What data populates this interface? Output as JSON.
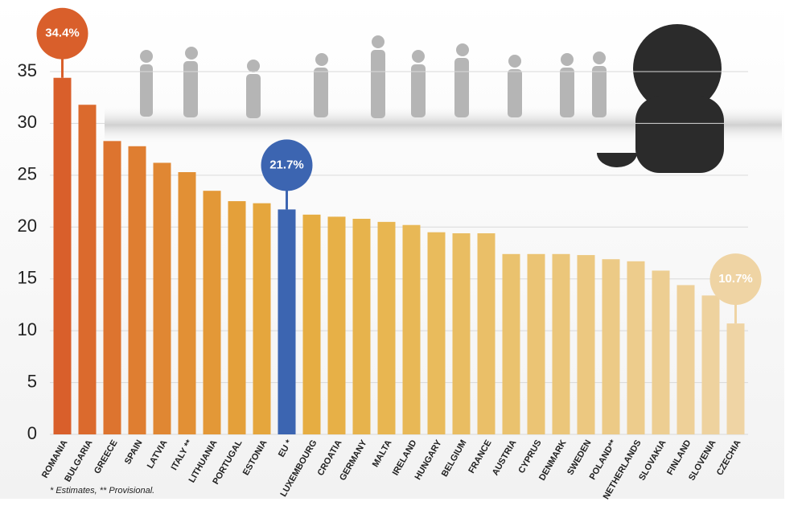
{
  "chart_data": {
    "type": "bar",
    "categories": [
      "ROMANIA",
      "BULGARIA",
      "GREECE",
      "SPAIN",
      "LATVIA",
      "ITALY **",
      "LITHUANIA",
      "PORTUGAL",
      "ESTONIA",
      "EU *",
      "LUXEMBOURG",
      "CROATIA",
      "GERMANY",
      "MALTA",
      "IRELAND",
      "HUNGARY",
      "BELGIUM",
      "FRANCE",
      "AUSTRIA",
      "CYPRUS",
      "DENMARK",
      "SWEDEN",
      "POLAND**",
      "NETHERLANDS",
      "SLOVAKIA",
      "FINLAND",
      "SLOVENIA",
      "CZECHIA"
    ],
    "values": [
      34.4,
      31.8,
      28.3,
      27.8,
      26.2,
      25.3,
      23.5,
      22.5,
      22.3,
      21.7,
      21.2,
      21.0,
      20.8,
      20.5,
      20.2,
      19.5,
      19.4,
      19.4,
      17.4,
      17.4,
      17.4,
      17.3,
      16.9,
      16.7,
      15.8,
      14.4,
      13.4,
      10.7
    ],
    "value_labels": [
      "34.4%",
      null,
      null,
      null,
      null,
      null,
      null,
      null,
      null,
      "21.7%",
      null,
      null,
      null,
      null,
      null,
      null,
      null,
      null,
      null,
      null,
      null,
      null,
      null,
      null,
      null,
      null,
      null,
      "10.7%"
    ],
    "colors": [
      "#d95f2b",
      "#db6a2d",
      "#dd742f",
      "#df7e31",
      "#e08733",
      "#e29035",
      "#e39837",
      "#e4a03a",
      "#e5a63d",
      "#3c65b1",
      "#e6ad42",
      "#e7b047",
      "#e7b34c",
      "#e8b651",
      "#e8b856",
      "#e9bb5c",
      "#e9bd62",
      "#eabf68",
      "#eac26e",
      "#ebc474",
      "#ebc67a",
      "#ecc880",
      "#ecca86",
      "#edcc8c",
      "#edce92",
      "#eed098",
      "#eed29e",
      "#efd4a4"
    ],
    "ylim": [
      0,
      35
    ],
    "yticks": [
      0,
      5,
      10,
      15,
      20,
      25,
      30,
      35
    ],
    "grid": true,
    "footnote": "* Estimates, ** Provisional."
  }
}
